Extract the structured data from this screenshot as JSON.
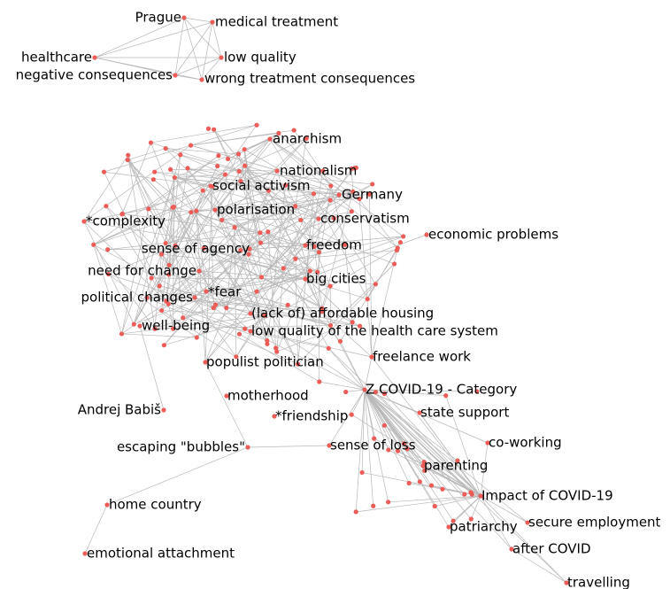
{
  "nodes": [
    {
      "label": "Prague"
    },
    {
      "label": "medical treatment"
    },
    {
      "label": "healthcare"
    },
    {
      "label": "low quality"
    },
    {
      "label": "negative consequences"
    },
    {
      "label": "wrong treatment consequences"
    },
    {
      "label": "anarchism"
    },
    {
      "label": "nationalism"
    },
    {
      "label": "social activism"
    },
    {
      "label": "Germany"
    },
    {
      "label": "polarisation"
    },
    {
      "label": "conservatism"
    },
    {
      "label": "*complexity"
    },
    {
      "label": "economic problems"
    },
    {
      "label": "sense of agency"
    },
    {
      "label": "freedom"
    },
    {
      "label": "need for change"
    },
    {
      "label": "big cities"
    },
    {
      "label": "political changes"
    },
    {
      "label": "*fear"
    },
    {
      "label": "(lack of) affordable housing"
    },
    {
      "label": "well-being"
    },
    {
      "label": "low quality of the health care system"
    },
    {
      "label": "freelance work"
    },
    {
      "label": "populist politician"
    },
    {
      "label": "Z COVID-19 - Category"
    },
    {
      "label": "motherhood"
    },
    {
      "label": "Andrej Babiš"
    },
    {
      "label": "state support"
    },
    {
      "label": "*friendship"
    },
    {
      "label": "escaping \"bubbles\""
    },
    {
      "label": "sense of loss"
    },
    {
      "label": "co-working"
    },
    {
      "label": "parenting"
    },
    {
      "label": "Impact of COVID-19"
    },
    {
      "label": "home country"
    },
    {
      "label": "secure employment"
    },
    {
      "label": "patriarchy"
    },
    {
      "label": "after COVID"
    },
    {
      "label": "emotional attachment"
    },
    {
      "label": "travelling"
    }
  ]
}
